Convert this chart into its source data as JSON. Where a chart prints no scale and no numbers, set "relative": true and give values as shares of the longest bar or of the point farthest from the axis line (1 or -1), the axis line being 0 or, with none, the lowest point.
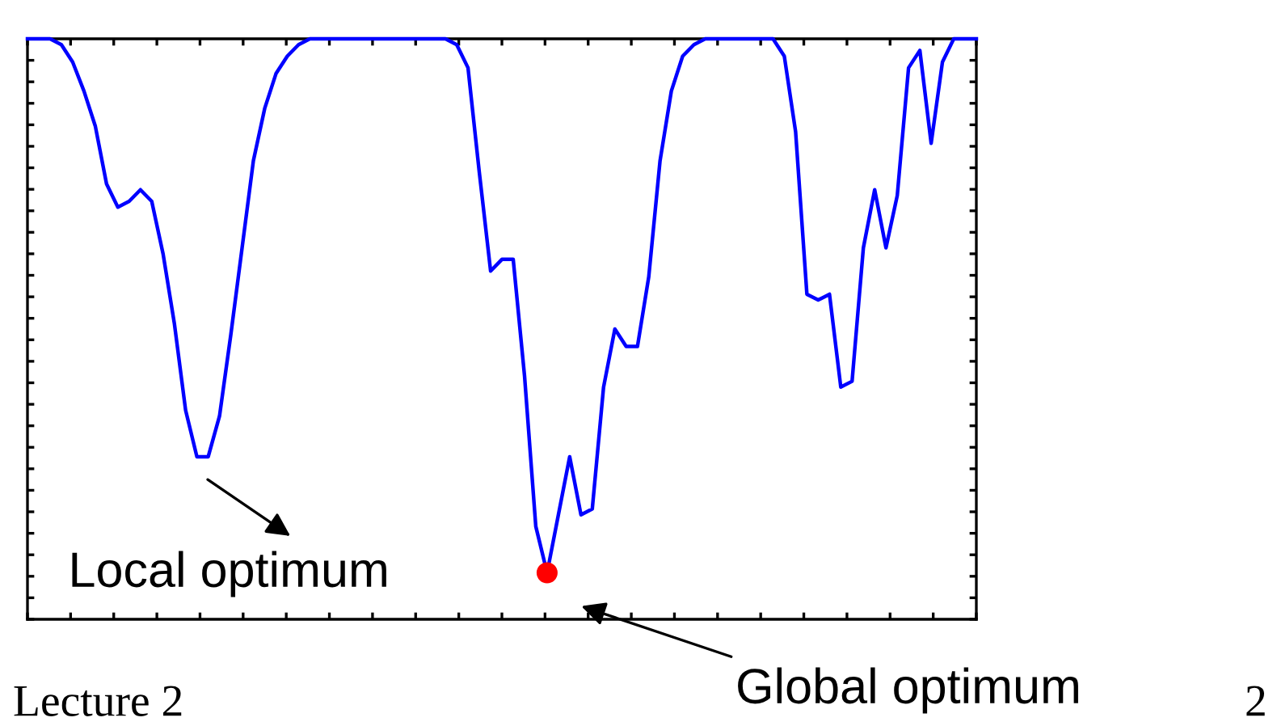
{
  "chart_data": {
    "type": "line",
    "relative": true,
    "tick_labels": false,
    "grid": false,
    "line_style": "solid",
    "categories": [
      null,
      null,
      null,
      null,
      null,
      null,
      null,
      null,
      null,
      null,
      null,
      null,
      null,
      null,
      null,
      null,
      null,
      null,
      null,
      null,
      null,
      null,
      null,
      null,
      null,
      null,
      null,
      null,
      null,
      null,
      null,
      null,
      null,
      null,
      null,
      null,
      null,
      null,
      null,
      null,
      null,
      null,
      null,
      null,
      null,
      null,
      null,
      null,
      null,
      null,
      null,
      null,
      null,
      null,
      null,
      null,
      null,
      null,
      null,
      null,
      null,
      null,
      null,
      null,
      null,
      null,
      null,
      null,
      null,
      null,
      null,
      null,
      null,
      null,
      null,
      null,
      null,
      null,
      null,
      null,
      null,
      null,
      null,
      null,
      null
    ],
    "series": [
      {
        "color": "#0000ff",
        "values": [
          1,
          1,
          1,
          0.99,
          0.96,
          0.91,
          0.85,
          0.75,
          0.71,
          0.72,
          0.74,
          0.72,
          0.63,
          0.51,
          0.36,
          0.28,
          0.28,
          0.35,
          0.49,
          0.64,
          0.79,
          0.88,
          0.94,
          0.97,
          0.99,
          1,
          1,
          1,
          1,
          1,
          1,
          1,
          1,
          1,
          1,
          1,
          1,
          1,
          0.99,
          0.95,
          0.77,
          0.6,
          0.62,
          0.62,
          0.42,
          0.16,
          0.08,
          0.18,
          0.28,
          0.18,
          0.19,
          0.4,
          0.5,
          0.47,
          0.47,
          0.59,
          0.79,
          0.91,
          0.97,
          0.99,
          1,
          1,
          1,
          1,
          1,
          1,
          1,
          0.97,
          0.84,
          0.56,
          0.55,
          0.56,
          0.4,
          0.41,
          0.64,
          0.74,
          0.64,
          0.73,
          0.95,
          0.98,
          0.82,
          0.96,
          1,
          1,
          1
        ]
      }
    ],
    "annotations": [
      "Local optimum",
      "Global optimum",
      "Lecture 2",
      "2"
    ]
  }
}
